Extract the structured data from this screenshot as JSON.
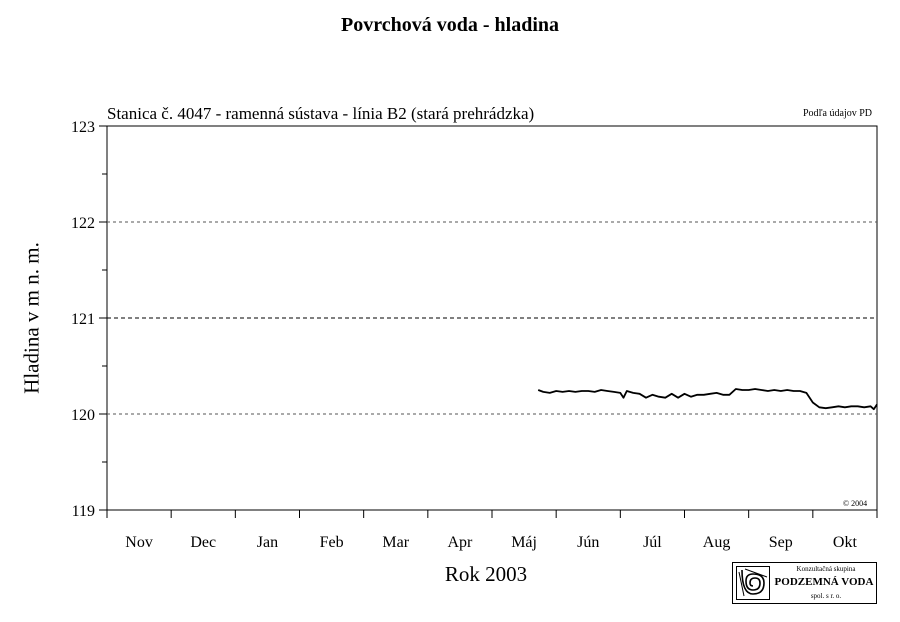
{
  "chart_data": {
    "type": "line",
    "title": "Povrchová voda - hladina",
    "subtitle": "Stanica č. 4047 - ramenná sústava - línia B2 (stará prehrádzka)",
    "source_note": "Podľa údajov PD",
    "copyright": "© 2004",
    "xlabel": "Rok 2003",
    "ylabel": "Hladina v m n. m.",
    "x_categories": [
      "Nov",
      "Dec",
      "Jan",
      "Feb",
      "Mar",
      "Apr",
      "Máj",
      "Jún",
      "Júl",
      "Aug",
      "Sep",
      "Okt"
    ],
    "y_ticks": [
      119,
      120,
      121,
      122,
      123
    ],
    "ylim": [
      119,
      123
    ],
    "xlim": [
      0,
      12
    ],
    "gridlines": [
      120,
      121,
      122
    ],
    "series": [
      {
        "x": [
          6.72,
          6.8,
          6.9,
          7.0,
          7.1,
          7.2,
          7.3,
          7.4,
          7.5,
          7.6,
          7.7,
          7.8,
          7.9,
          8.0,
          8.05,
          8.1,
          8.2,
          8.3,
          8.4,
          8.5,
          8.6,
          8.7,
          8.8,
          8.9,
          9.0,
          9.1,
          9.2,
          9.3,
          9.4,
          9.5,
          9.6,
          9.7,
          9.8,
          9.9,
          10.0,
          10.1,
          10.2,
          10.3,
          10.4,
          10.5,
          10.6,
          10.7,
          10.8,
          10.9,
          11.0,
          11.1,
          11.2,
          11.3,
          11.4,
          11.5,
          11.6,
          11.7,
          11.8,
          11.9,
          11.95,
          12.0
        ],
        "y": [
          120.25,
          120.23,
          120.22,
          120.24,
          120.23,
          120.24,
          120.23,
          120.24,
          120.24,
          120.23,
          120.25,
          120.24,
          120.23,
          120.22,
          120.17,
          120.24,
          120.22,
          120.21,
          120.17,
          120.2,
          120.18,
          120.17,
          120.21,
          120.17,
          120.21,
          120.18,
          120.2,
          120.2,
          120.21,
          120.22,
          120.2,
          120.2,
          120.26,
          120.25,
          120.25,
          120.26,
          120.25,
          120.24,
          120.25,
          120.24,
          120.25,
          120.24,
          120.24,
          120.22,
          120.12,
          120.07,
          120.06,
          120.07,
          120.08,
          120.07,
          120.08,
          120.08,
          120.07,
          120.08,
          120.05,
          120.1
        ]
      }
    ]
  },
  "logo": {
    "line1": "Konzultačná skupina",
    "line2": "PODZEMNÁ VODA",
    "line3": "spol. s r. o."
  }
}
